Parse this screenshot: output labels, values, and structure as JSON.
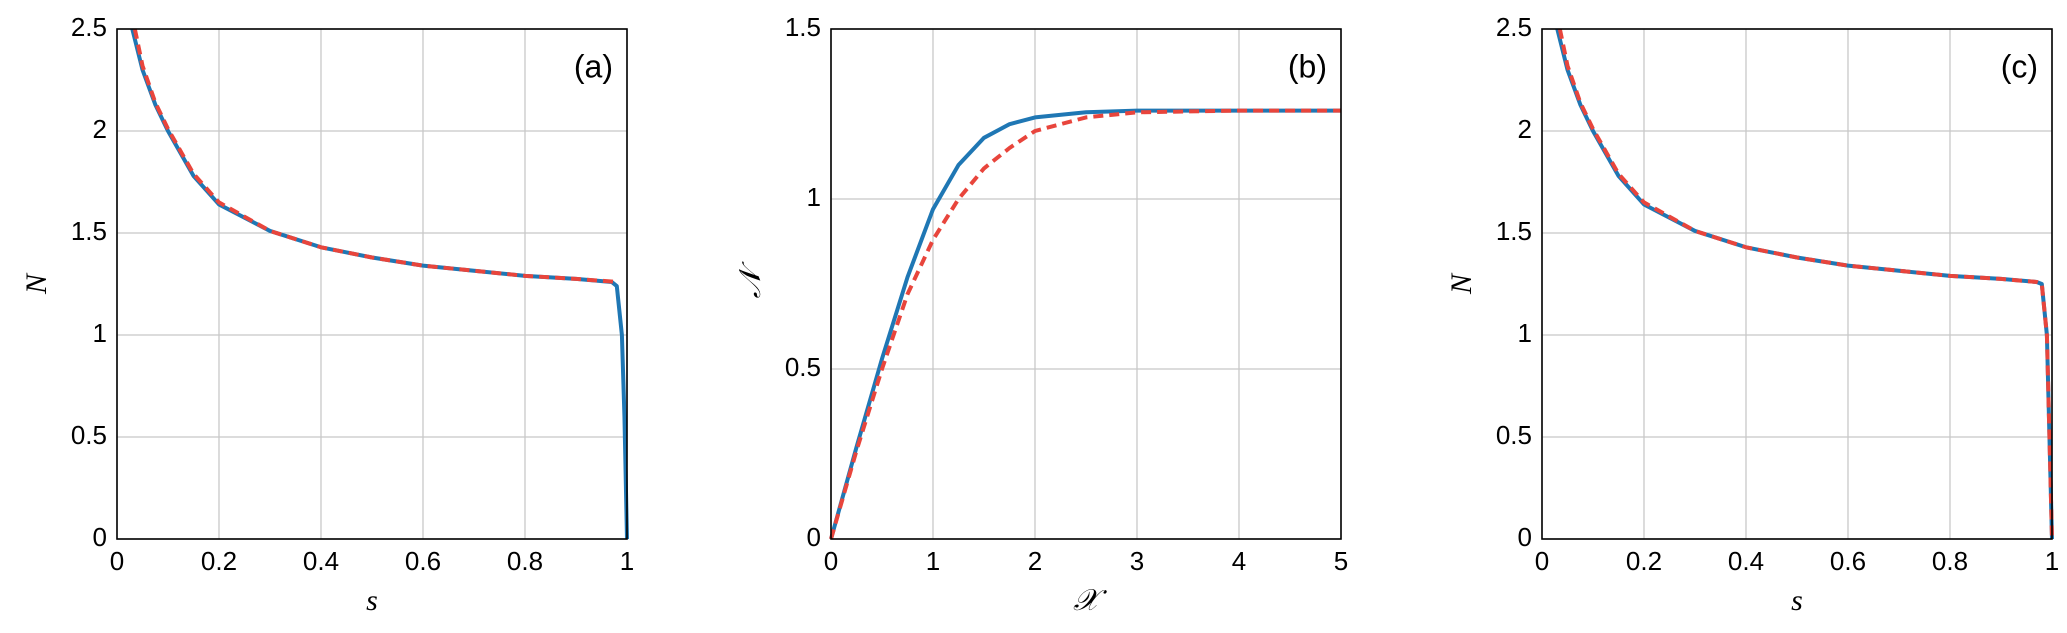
{
  "chart_data": [
    {
      "type": "line",
      "panel_label": "(a)",
      "x_label": "s",
      "y_label": "N",
      "xlim": [
        0,
        1
      ],
      "xticks": [
        0,
        0.2,
        0.4,
        0.6,
        0.8,
        1
      ],
      "ylim": [
        0,
        2.5
      ],
      "yticks": [
        0,
        0.5,
        1,
        1.5,
        2,
        2.5
      ],
      "grid": true,
      "series": [
        {
          "color": "#1f77b4",
          "dash": false,
          "x": [
            0.03,
            0.05,
            0.075,
            0.1,
            0.15,
            0.2,
            0.3,
            0.4,
            0.5,
            0.6,
            0.7,
            0.8,
            0.9,
            0.97,
            0.98,
            0.99,
            0.995,
            1
          ],
          "values": [
            2.5,
            2.3,
            2.13,
            2.0,
            1.78,
            1.64,
            1.51,
            1.43,
            1.38,
            1.34,
            1.315,
            1.29,
            1.275,
            1.26,
            1.24,
            1.0,
            0.6,
            0
          ]
        },
        {
          "color": "#e8453c",
          "dash": true,
          "x": [
            0.035,
            0.05,
            0.075,
            0.1,
            0.15,
            0.2,
            0.3,
            0.4,
            0.5,
            0.6,
            0.7,
            0.8,
            0.9,
            0.98
          ],
          "values": [
            2.5,
            2.32,
            2.14,
            2.01,
            1.79,
            1.65,
            1.51,
            1.43,
            1.38,
            1.34,
            1.315,
            1.29,
            1.275,
            1.26
          ]
        }
      ]
    },
    {
      "type": "line",
      "panel_label": "(b)",
      "x_label": "𝒳",
      "y_label": "𝒩",
      "xlim": [
        0,
        5
      ],
      "xticks": [
        0,
        1,
        2,
        3,
        4,
        5
      ],
      "ylim": [
        0,
        1.5
      ],
      "yticks": [
        0,
        0.5,
        1,
        1.5
      ],
      "grid": true,
      "series": [
        {
          "color": "#1f77b4",
          "dash": false,
          "x": [
            0,
            0.25,
            0.5,
            0.75,
            1,
            1.25,
            1.5,
            1.75,
            2,
            2.5,
            3,
            4,
            5
          ],
          "values": [
            0,
            0.27,
            0.53,
            0.77,
            0.97,
            1.1,
            1.18,
            1.22,
            1.24,
            1.255,
            1.26,
            1.26,
            1.26
          ]
        },
        {
          "color": "#e8453c",
          "dash": true,
          "x": [
            0,
            0.25,
            0.5,
            0.75,
            1,
            1.25,
            1.5,
            1.75,
            2,
            2.5,
            3,
            4,
            5
          ],
          "values": [
            0,
            0.26,
            0.5,
            0.72,
            0.88,
            1.0,
            1.09,
            1.15,
            1.2,
            1.24,
            1.255,
            1.26,
            1.26
          ]
        }
      ]
    },
    {
      "type": "line",
      "panel_label": "(c)",
      "x_label": "s",
      "y_label": "N",
      "xlim": [
        0,
        1
      ],
      "xticks": [
        0,
        0.2,
        0.4,
        0.6,
        0.8,
        1
      ],
      "ylim": [
        0,
        2.5
      ],
      "yticks": [
        0,
        0.5,
        1,
        1.5,
        2,
        2.5
      ],
      "grid": true,
      "series": [
        {
          "color": "#1f77b4",
          "dash": false,
          "x": [
            0.03,
            0.05,
            0.075,
            0.1,
            0.15,
            0.2,
            0.3,
            0.4,
            0.5,
            0.6,
            0.7,
            0.8,
            0.9,
            0.97,
            0.98,
            0.99,
            0.995,
            1
          ],
          "values": [
            2.5,
            2.3,
            2.13,
            2.0,
            1.78,
            1.64,
            1.51,
            1.43,
            1.38,
            1.34,
            1.315,
            1.29,
            1.275,
            1.26,
            1.25,
            1.0,
            0.5,
            0
          ]
        },
        {
          "color": "#e8453c",
          "dash": true,
          "x": [
            0.035,
            0.05,
            0.075,
            0.1,
            0.15,
            0.2,
            0.3,
            0.4,
            0.5,
            0.6,
            0.7,
            0.8,
            0.9,
            0.97,
            0.98,
            0.99,
            0.995,
            1
          ],
          "values": [
            2.5,
            2.32,
            2.14,
            2.01,
            1.79,
            1.65,
            1.51,
            1.43,
            1.38,
            1.34,
            1.315,
            1.29,
            1.275,
            1.26,
            1.25,
            1.0,
            0.5,
            0
          ]
        }
      ]
    }
  ]
}
